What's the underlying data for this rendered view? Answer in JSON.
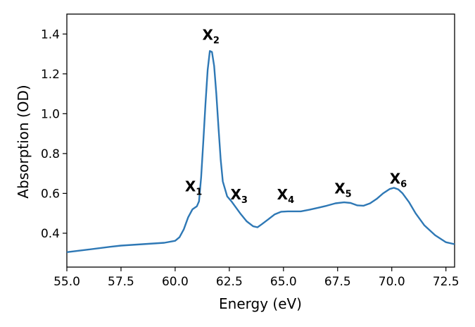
{
  "chart_data": {
    "type": "line",
    "xlabel": "Energy (eV)",
    "ylabel": "Absorption (OD)",
    "xlim": [
      55.0,
      72.9
    ],
    "ylim": [
      0.23,
      1.5
    ],
    "grid": false,
    "x_ticks": [
      55.0,
      57.5,
      60.0,
      62.5,
      65.0,
      67.5,
      70.0,
      72.5
    ],
    "x_tick_labels": [
      "55.0",
      "57.5",
      "60.0",
      "62.5",
      "65.0",
      "67.5",
      "70.0",
      "72.5"
    ],
    "y_ticks": [
      0.4,
      0.6,
      0.8,
      1.0,
      1.2,
      1.4
    ],
    "y_tick_labels": [
      "0.4",
      "0.6",
      "0.8",
      "1.0",
      "1.2",
      "1.4"
    ],
    "line_color": "#2e78b5",
    "series": [
      {
        "x": [
          55.0,
          56.0,
          57.0,
          57.5,
          58.5,
          59.5,
          60.0,
          60.2,
          60.4,
          60.6,
          60.8,
          61.0,
          61.1,
          61.2,
          61.3,
          61.4,
          61.5,
          61.6,
          61.7,
          61.8,
          61.9,
          62.0,
          62.1,
          62.2,
          62.4,
          62.6,
          62.8,
          63.0,
          63.3,
          63.6,
          63.8,
          64.0,
          64.3,
          64.6,
          64.9,
          65.2,
          65.5,
          65.8,
          66.2,
          66.6,
          67.0,
          67.4,
          67.8,
          68.1,
          68.4,
          68.7,
          69.0,
          69.3,
          69.6,
          69.9,
          70.1,
          70.3,
          70.5,
          70.8,
          71.1,
          71.5,
          72.0,
          72.5,
          72.9
        ],
        "y": [
          0.305,
          0.318,
          0.332,
          0.338,
          0.345,
          0.352,
          0.362,
          0.38,
          0.42,
          0.48,
          0.52,
          0.535,
          0.56,
          0.68,
          0.86,
          1.05,
          1.22,
          1.315,
          1.31,
          1.24,
          1.1,
          0.93,
          0.77,
          0.66,
          0.585,
          0.56,
          0.53,
          0.5,
          0.46,
          0.435,
          0.43,
          0.445,
          0.47,
          0.495,
          0.508,
          0.51,
          0.51,
          0.51,
          0.518,
          0.528,
          0.538,
          0.55,
          0.555,
          0.552,
          0.54,
          0.538,
          0.55,
          0.572,
          0.6,
          0.622,
          0.628,
          0.62,
          0.6,
          0.555,
          0.5,
          0.44,
          0.39,
          0.355,
          0.345
        ]
      }
    ],
    "annotations": [
      {
        "base": "X",
        "sub": "1",
        "x": 60.85,
        "y": 0.61
      },
      {
        "base": "X",
        "sub": "2",
        "x": 61.65,
        "y": 1.37
      },
      {
        "base": "X",
        "sub": "3",
        "x": 62.95,
        "y": 0.57
      },
      {
        "base": "X",
        "sub": "4",
        "x": 65.1,
        "y": 0.57
      },
      {
        "base": "X",
        "sub": "5",
        "x": 67.75,
        "y": 0.6
      },
      {
        "base": "X",
        "sub": "6",
        "x": 70.3,
        "y": 0.65
      }
    ]
  }
}
